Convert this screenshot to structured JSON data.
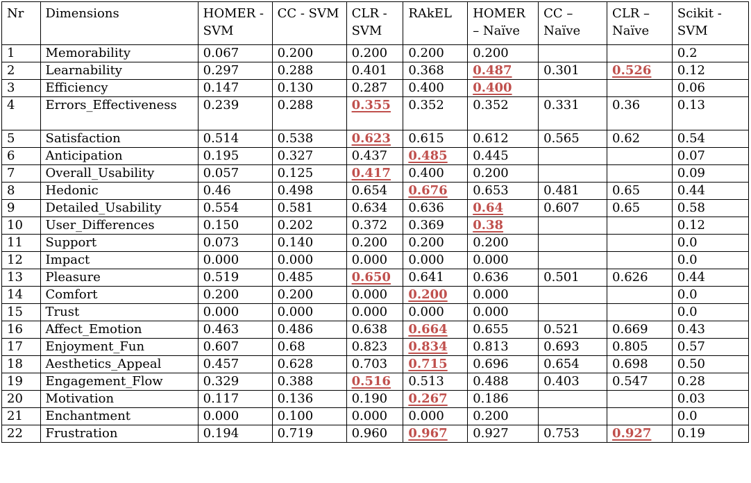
{
  "table": {
    "headers": [
      "Nr",
      "Dimensions",
      "HOMER - SVM",
      "CC - SVM",
      "CLR - SVM",
      "RAkEL",
      "HOMER – Naïve",
      "CC – Naïve",
      "CLR – Naïve",
      "Scikit - SVM"
    ],
    "rows": [
      {
        "nr": "1",
        "dim": "Memorability",
        "cells": [
          {
            "v": "0.067"
          },
          {
            "v": "0.200"
          },
          {
            "v": "0.200"
          },
          {
            "v": "0.200"
          },
          {
            "v": "0.200"
          },
          {
            "v": ""
          },
          {
            "v": ""
          },
          {
            "v": "0.2"
          }
        ]
      },
      {
        "nr": "2",
        "dim": "Learnability",
        "cells": [
          {
            "v": "0.297"
          },
          {
            "v": "0.288"
          },
          {
            "v": "0.401"
          },
          {
            "v": "0.368"
          },
          {
            "v": "0.487",
            "best": true
          },
          {
            "v": "0.301"
          },
          {
            "v": "0.526",
            "best": true
          },
          {
            "v": "0.12"
          }
        ]
      },
      {
        "nr": "3",
        "dim": "Efficiency",
        "cells": [
          {
            "v": "0.147"
          },
          {
            "v": "0.130"
          },
          {
            "v": "0.287"
          },
          {
            "v": "0.400"
          },
          {
            "v": "0.400",
            "best": true
          },
          {
            "v": ""
          },
          {
            "v": ""
          },
          {
            "v": "0.06"
          }
        ]
      },
      {
        "nr": "4",
        "dim": "Errors_Effectiveness",
        "tall": true,
        "cells": [
          {
            "v": "0.239"
          },
          {
            "v": "0.288"
          },
          {
            "v": "0.355",
            "best": true
          },
          {
            "v": "0.352"
          },
          {
            "v": "0.352"
          },
          {
            "v": "0.331"
          },
          {
            "v": "0.36"
          },
          {
            "v": "0.13"
          }
        ]
      },
      {
        "nr": "5",
        "dim": "Satisfaction",
        "cells": [
          {
            "v": "0.514"
          },
          {
            "v": "0.538"
          },
          {
            "v": "0.623",
            "best": true
          },
          {
            "v": "0.615"
          },
          {
            "v": "0.612"
          },
          {
            "v": "0.565"
          },
          {
            "v": "0.62"
          },
          {
            "v": "0.54"
          }
        ]
      },
      {
        "nr": "6",
        "dim": "Anticipation",
        "cells": [
          {
            "v": "0.195"
          },
          {
            "v": "0.327"
          },
          {
            "v": "0.437"
          },
          {
            "v": "0.485",
            "best": true
          },
          {
            "v": "0.445"
          },
          {
            "v": ""
          },
          {
            "v": ""
          },
          {
            "v": "0.07"
          }
        ]
      },
      {
        "nr": "7",
        "dim": "Overall_Usability",
        "cells": [
          {
            "v": "0.057"
          },
          {
            "v": "0.125"
          },
          {
            "v": "0.417",
            "best": true
          },
          {
            "v": "0.400"
          },
          {
            "v": "0.200"
          },
          {
            "v": ""
          },
          {
            "v": ""
          },
          {
            "v": "0.09"
          }
        ]
      },
      {
        "nr": "8",
        "dim": "Hedonic",
        "cells": [
          {
            "v": "0.46"
          },
          {
            "v": "0.498"
          },
          {
            "v": "0.654"
          },
          {
            "v": "0.676",
            "best": true
          },
          {
            "v": "0.653"
          },
          {
            "v": "0.481"
          },
          {
            "v": "0.65"
          },
          {
            "v": "0.44"
          }
        ]
      },
      {
        "nr": "9",
        "dim": "Detailed_Usability",
        "cells": [
          {
            "v": "0.554"
          },
          {
            "v": "0.581"
          },
          {
            "v": "0.634"
          },
          {
            "v": "0.636"
          },
          {
            "v": "0.64",
            "best": true
          },
          {
            "v": "0.607"
          },
          {
            "v": "0.65"
          },
          {
            "v": "0.58"
          }
        ]
      },
      {
        "nr": "10",
        "dim": "User_Differences",
        "cells": [
          {
            "v": "0.150"
          },
          {
            "v": "0.202"
          },
          {
            "v": "0.372"
          },
          {
            "v": "0.369"
          },
          {
            "v": "0.38",
            "best": true
          },
          {
            "v": ""
          },
          {
            "v": ""
          },
          {
            "v": "0.12"
          }
        ]
      },
      {
        "nr": "11",
        "dim": "Support",
        "cells": [
          {
            "v": "0.073"
          },
          {
            "v": "0.140"
          },
          {
            "v": "0.200"
          },
          {
            "v": "0.200"
          },
          {
            "v": "0.200"
          },
          {
            "v": ""
          },
          {
            "v": ""
          },
          {
            "v": "0.0"
          }
        ]
      },
      {
        "nr": "12",
        "dim": "Impact",
        "cells": [
          {
            "v": "0.000"
          },
          {
            "v": "0.000"
          },
          {
            "v": "0.000"
          },
          {
            "v": "0.000"
          },
          {
            "v": "0.000"
          },
          {
            "v": ""
          },
          {
            "v": ""
          },
          {
            "v": "0.0"
          }
        ]
      },
      {
        "nr": "13",
        "dim": "Pleasure",
        "cells": [
          {
            "v": "0.519"
          },
          {
            "v": "0.485"
          },
          {
            "v": "0.650",
            "best": true
          },
          {
            "v": "0.641"
          },
          {
            "v": "0.636"
          },
          {
            "v": "0.501"
          },
          {
            "v": "0.626"
          },
          {
            "v": "0.44"
          }
        ]
      },
      {
        "nr": "14",
        "dim": "Comfort",
        "cells": [
          {
            "v": "0.200"
          },
          {
            "v": "0.200"
          },
          {
            "v": "0.000"
          },
          {
            "v": "0.200",
            "best": true
          },
          {
            "v": "0.000"
          },
          {
            "v": ""
          },
          {
            "v": ""
          },
          {
            "v": "0.0"
          }
        ]
      },
      {
        "nr": "15",
        "dim": "Trust",
        "cells": [
          {
            "v": "0.000"
          },
          {
            "v": "0.000"
          },
          {
            "v": "0.000"
          },
          {
            "v": "0.000"
          },
          {
            "v": "0.000"
          },
          {
            "v": ""
          },
          {
            "v": ""
          },
          {
            "v": "0.0"
          }
        ]
      },
      {
        "nr": "16",
        "dim": "Affect_Emotion",
        "cells": [
          {
            "v": "0.463"
          },
          {
            "v": "0.486"
          },
          {
            "v": "0.638"
          },
          {
            "v": "0.664",
            "best": true
          },
          {
            "v": "0.655"
          },
          {
            "v": "0.521"
          },
          {
            "v": "0.669"
          },
          {
            "v": "0.43"
          }
        ]
      },
      {
        "nr": "17",
        "dim": "Enjoyment_Fun",
        "cells": [
          {
            "v": "0.607"
          },
          {
            "v": "0.68"
          },
          {
            "v": "0.823"
          },
          {
            "v": "0.834",
            "best": true
          },
          {
            "v": "0.813"
          },
          {
            "v": "0.693"
          },
          {
            "v": "0.805"
          },
          {
            "v": "0.57"
          }
        ]
      },
      {
        "nr": "18",
        "dim": "Aesthetics_Appeal",
        "cells": [
          {
            "v": "0.457"
          },
          {
            "v": "0.628"
          },
          {
            "v": "0.703"
          },
          {
            "v": "0.715",
            "best": true
          },
          {
            "v": "0.696"
          },
          {
            "v": "0.654"
          },
          {
            "v": "0.698"
          },
          {
            "v": "0.50"
          }
        ]
      },
      {
        "nr": "19",
        "dim": "Engagement_Flow",
        "cells": [
          {
            "v": "0.329"
          },
          {
            "v": "0.388"
          },
          {
            "v": "0.516",
            "best": true
          },
          {
            "v": "0.513"
          },
          {
            "v": "0.488"
          },
          {
            "v": "0.403"
          },
          {
            "v": "0.547"
          },
          {
            "v": "0.28"
          }
        ]
      },
      {
        "nr": "20",
        "dim": "Motivation",
        "cells": [
          {
            "v": "0.117"
          },
          {
            "v": "0.136"
          },
          {
            "v": "0.190"
          },
          {
            "v": "0.267",
            "best": true
          },
          {
            "v": "0.186"
          },
          {
            "v": ""
          },
          {
            "v": ""
          },
          {
            "v": "0.03"
          }
        ]
      },
      {
        "nr": "21",
        "dim": "Enchantment",
        "cells": [
          {
            "v": "0.000"
          },
          {
            "v": "0.100"
          },
          {
            "v": "0.000"
          },
          {
            "v": "0.000"
          },
          {
            "v": "0.200"
          },
          {
            "v": ""
          },
          {
            "v": ""
          },
          {
            "v": "0.0"
          }
        ]
      },
      {
        "nr": "22",
        "dim": "Frustration",
        "cells": [
          {
            "v": "0.194"
          },
          {
            "v": "0.719"
          },
          {
            "v": "0.960"
          },
          {
            "v": "0.967",
            "best": true
          },
          {
            "v": "0.927"
          },
          {
            "v": "0.753"
          },
          {
            "v": "0.927",
            "best": true
          },
          {
            "v": "0.19"
          }
        ]
      }
    ]
  },
  "colors": {
    "best_value": "#c0504d",
    "border": "#000000",
    "text": "#000000"
  }
}
